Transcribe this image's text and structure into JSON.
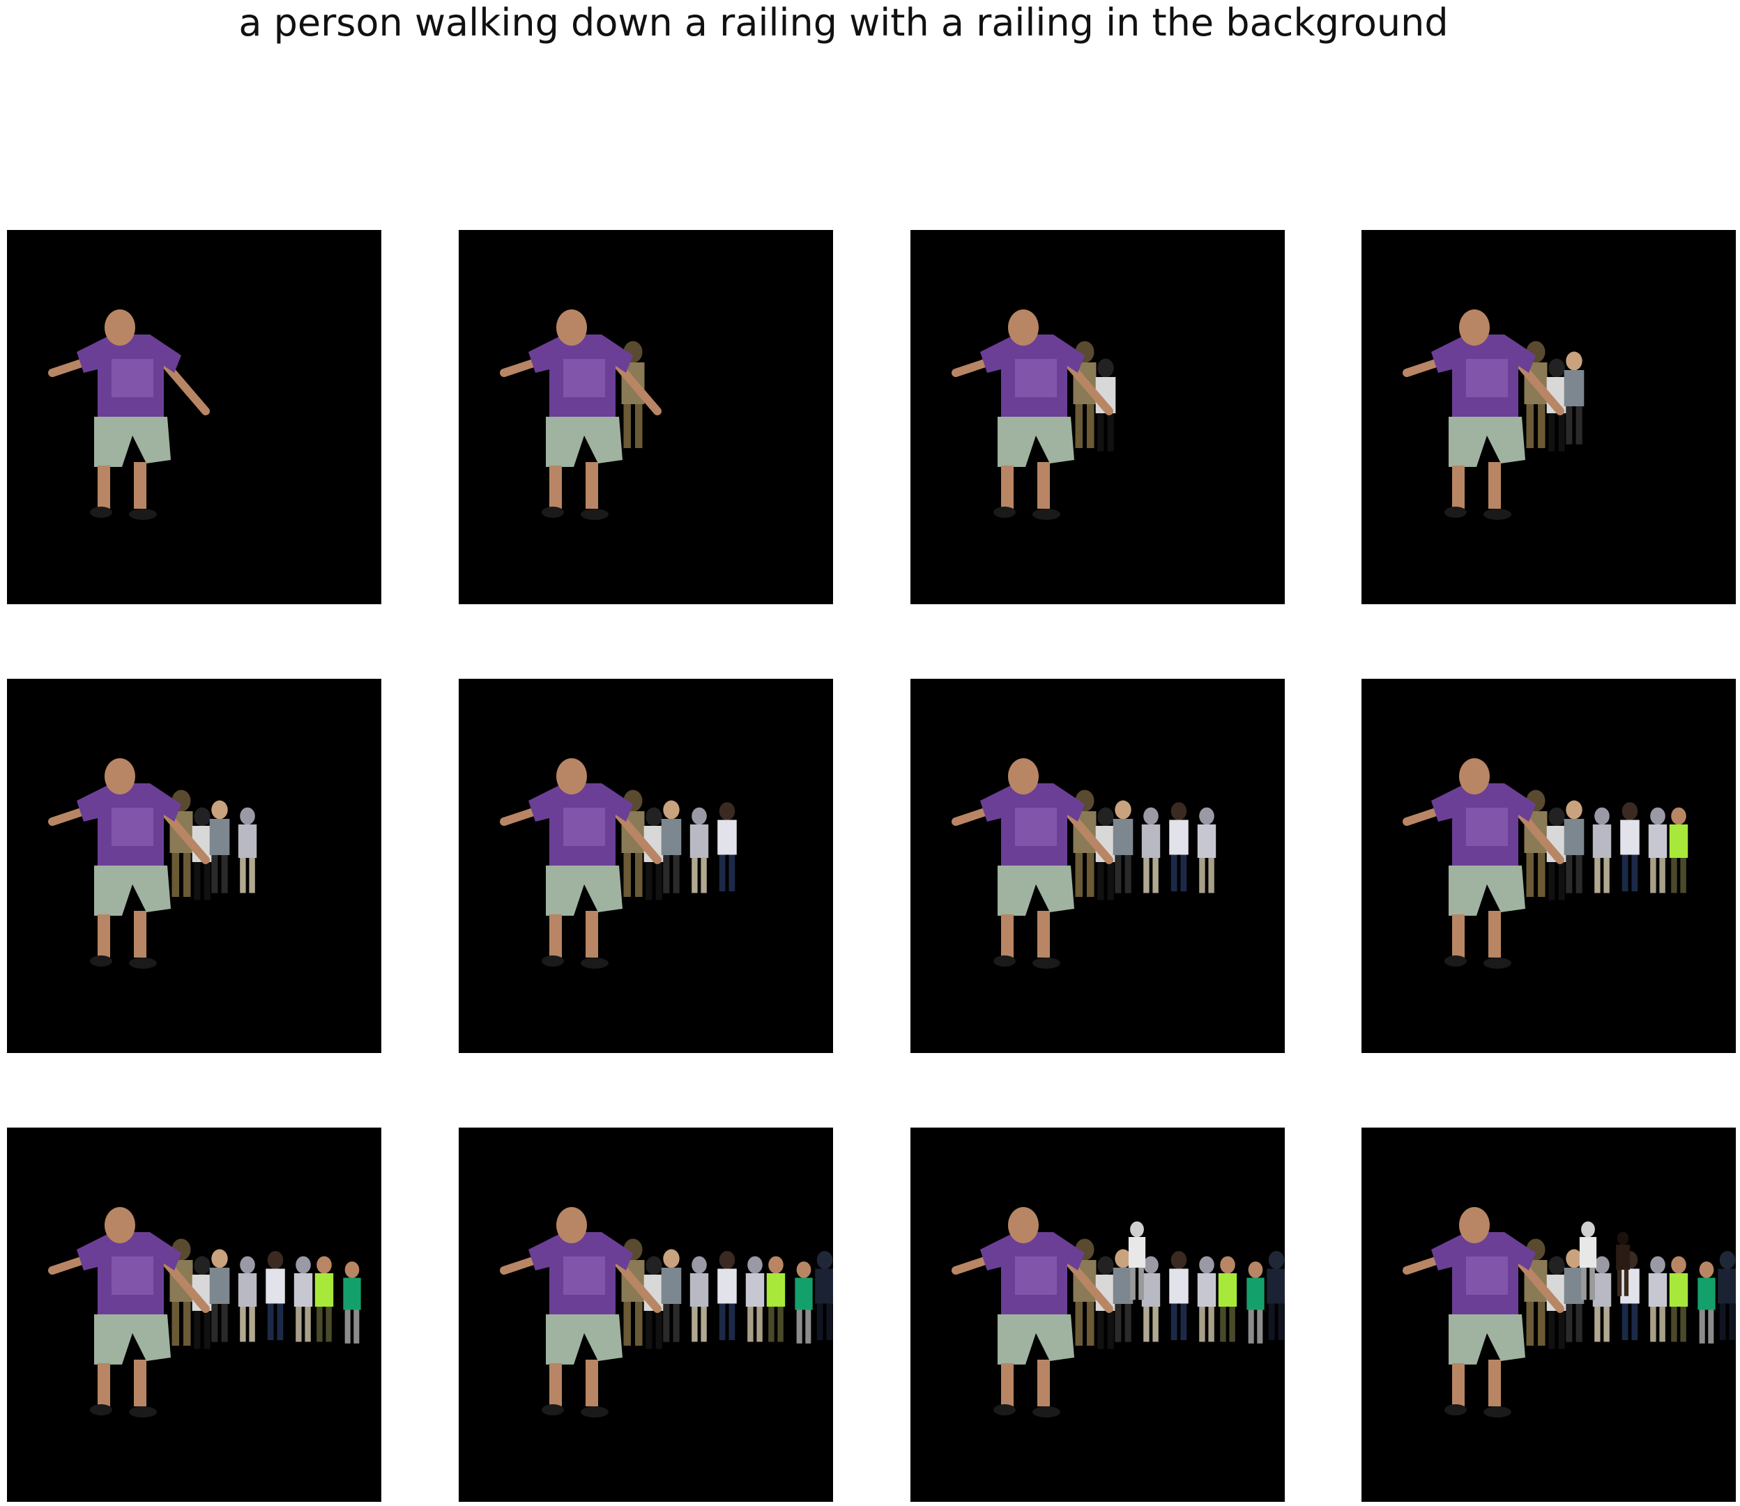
{
  "caption": "a person walking down a railing with a railing in the background",
  "colors": {
    "background": "#ffffff",
    "panel": "#000000",
    "shirt": "#6b3f96",
    "shorts": "#9fb3a0",
    "skin": "#b88664"
  },
  "panels": [
    {
      "step": 1,
      "extra_figures": 0
    },
    {
      "step": 2,
      "extra_figures": 1
    },
    {
      "step": 3,
      "extra_figures": 2
    },
    {
      "step": 4,
      "extra_figures": 3
    },
    {
      "step": 5,
      "extra_figures": 4
    },
    {
      "step": 6,
      "extra_figures": 5
    },
    {
      "step": 7,
      "extra_figures": 6
    },
    {
      "step": 8,
      "extra_figures": 7
    },
    {
      "step": 9,
      "extra_figures": 8
    },
    {
      "step": 10,
      "extra_figures": 9
    },
    {
      "step": 11,
      "extra_figures": 10
    },
    {
      "step": 12,
      "extra_figures": 11
    }
  ]
}
